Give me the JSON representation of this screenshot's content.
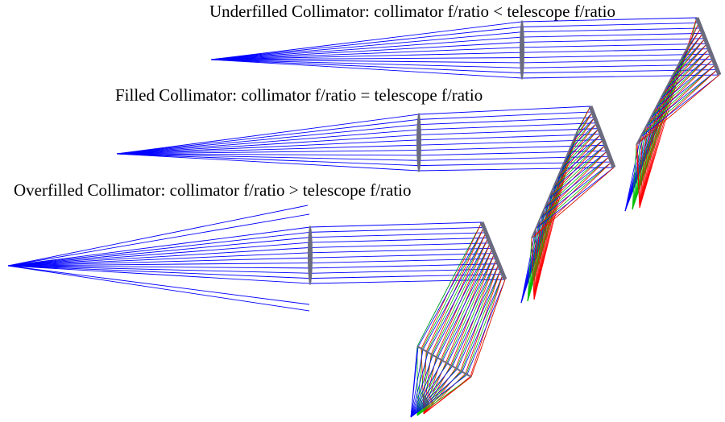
{
  "captions": {
    "underfilled": "Underfilled Collimator: collimator f/ratio < telescope f/ratio",
    "filled": "Filled Collimator: collimator f/ratio = telescope f/ratio",
    "overfilled": "Overfilled Collimator: collimator f/ratio > telescope f/ratio"
  },
  "colors": {
    "beam": "#0000ff",
    "optic": "#6b6b80",
    "red": "#ff0000",
    "green": "#00c000",
    "blue": "#0000ff"
  }
}
